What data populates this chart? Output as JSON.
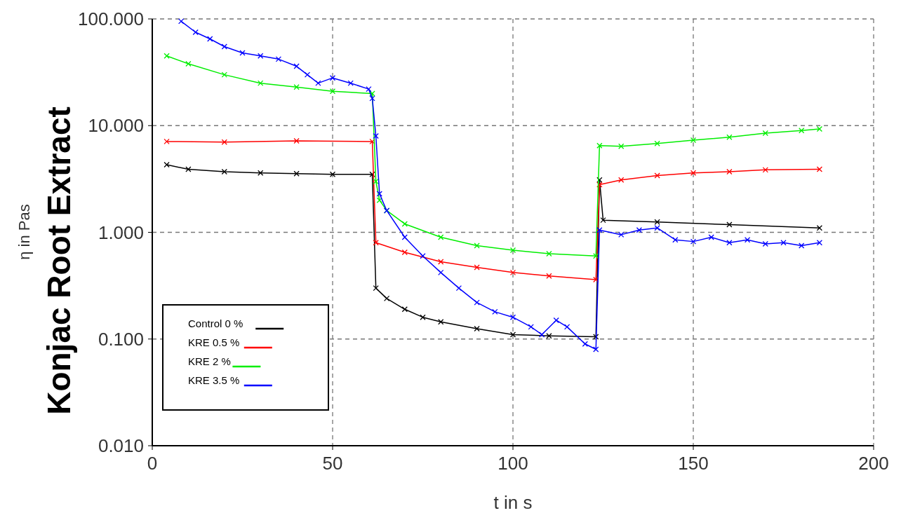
{
  "chart_data": {
    "type": "line",
    "title": "Konjac Root Extract",
    "xlabel": "t in s",
    "ylabel": "η in Pas",
    "log": true,
    "grid": true,
    "legend": "bottom left",
    "marker": "cross",
    "line_style": "solid",
    "xlim": [
      0,
      200
    ],
    "xticks": [
      0,
      50,
      100,
      150,
      200
    ],
    "ylim": [
      0.01,
      100
    ],
    "yticks": [
      {
        "value": 100,
        "label": "100.000"
      },
      {
        "value": 10,
        "label": "10.000"
      },
      {
        "value": 1,
        "label": "1.000"
      },
      {
        "value": 0.1,
        "label": "0.100"
      },
      {
        "value": 0.01,
        "label": "0.010"
      }
    ],
    "series": [
      {
        "name": "Control 0 %",
        "color": "#000000",
        "x": [
          4,
          10,
          20,
          30,
          40,
          50,
          61,
          62,
          65,
          70,
          75,
          80,
          90,
          100,
          110,
          123,
          124,
          125,
          140,
          160,
          185
        ],
        "values": [
          4.3,
          3.9,
          3.7,
          3.6,
          3.55,
          3.5,
          3.5,
          0.3,
          0.24,
          0.19,
          0.16,
          0.145,
          0.125,
          0.11,
          0.107,
          0.105,
          3.1,
          1.3,
          1.25,
          1.18,
          1.1
        ]
      },
      {
        "name": "KRE 0.5 %",
        "color": "#ff0000",
        "x": [
          4,
          20,
          40,
          61,
          62,
          70,
          80,
          90,
          100,
          110,
          123,
          124,
          130,
          140,
          150,
          160,
          170,
          185
        ],
        "values": [
          7.1,
          7.0,
          7.2,
          7.1,
          0.8,
          0.65,
          0.53,
          0.47,
          0.42,
          0.39,
          0.36,
          2.8,
          3.1,
          3.4,
          3.6,
          3.7,
          3.85,
          3.9
        ]
      },
      {
        "name": "KRE 2 %",
        "color": "#00ee00",
        "x": [
          4,
          10,
          20,
          30,
          40,
          50,
          61,
          62,
          63,
          65,
          70,
          80,
          90,
          100,
          110,
          123,
          124,
          130,
          140,
          150,
          160,
          170,
          180,
          185
        ],
        "values": [
          45,
          38,
          30,
          25,
          23,
          21,
          20,
          3,
          2,
          1.6,
          1.2,
          0.9,
          0.75,
          0.68,
          0.63,
          0.6,
          6.5,
          6.4,
          6.8,
          7.3,
          7.8,
          8.5,
          9,
          9.3
        ]
      },
      {
        "name": "KRE 3.5 %",
        "color": "#0000ff",
        "x": [
          8,
          12,
          16,
          20,
          25,
          30,
          35,
          40,
          43,
          46,
          50,
          55,
          60,
          61,
          62,
          63,
          65,
          70,
          75,
          80,
          85,
          90,
          95,
          100,
          105,
          108,
          112,
          115,
          120,
          123,
          124,
          130,
          135,
          140,
          145,
          150,
          155,
          160,
          165,
          170,
          175,
          180,
          185
        ],
        "values": [
          95,
          75,
          65,
          55,
          48,
          45,
          42,
          36,
          30,
          25,
          28,
          25,
          22,
          18,
          8,
          2.3,
          1.6,
          0.9,
          0.6,
          0.42,
          0.3,
          0.22,
          0.18,
          0.16,
          0.13,
          0.11,
          0.15,
          0.13,
          0.09,
          0.08,
          1.05,
          0.95,
          1.05,
          1.1,
          0.85,
          0.82,
          0.9,
          0.8,
          0.85,
          0.78,
          0.8,
          0.75,
          0.8
        ]
      }
    ]
  }
}
